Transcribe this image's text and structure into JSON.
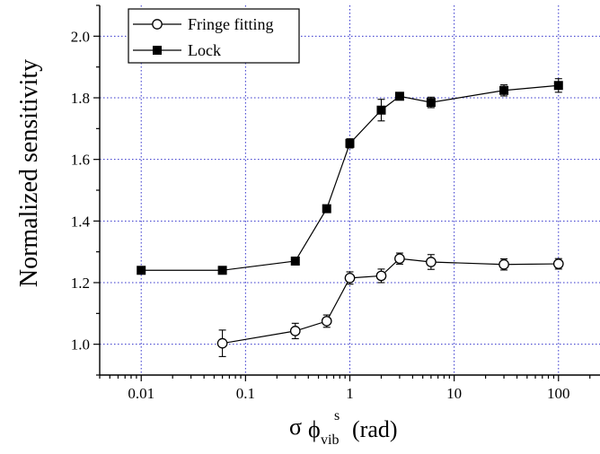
{
  "chart_data": {
    "type": "scatter",
    "x_scale": "log",
    "xlim": [
      0.004,
      250
    ],
    "ylim": [
      0.9,
      2.1
    ],
    "grid": true,
    "legend_position": "top-left",
    "xlabel": {
      "symbol": "σ",
      "var": "ϕ",
      "superscript": "s",
      "subscript": "vib",
      "unit": "(rad)"
    },
    "ylabel": "Normalized sensitivity",
    "x_ticks": [
      {
        "value": 0.01,
        "label": "0.01"
      },
      {
        "value": 0.1,
        "label": "0.1"
      },
      {
        "value": 1,
        "label": "1"
      },
      {
        "value": 10,
        "label": "10"
      },
      {
        "value": 100,
        "label": "100"
      }
    ],
    "y_ticks": [
      {
        "value": 1.0,
        "label": "1.0"
      },
      {
        "value": 1.2,
        "label": "1.2"
      },
      {
        "value": 1.4,
        "label": "1.4"
      },
      {
        "value": 1.6,
        "label": "1.6"
      },
      {
        "value": 1.8,
        "label": "1.8"
      },
      {
        "value": 2.0,
        "label": "2.0"
      }
    ],
    "series": [
      {
        "name": "Fringe fitting",
        "marker": "open-circle",
        "color": "#000000",
        "x": [
          0.06,
          0.3,
          0.6,
          1,
          2,
          3,
          6,
          30,
          100
        ],
        "y": [
          1.003,
          1.043,
          1.075,
          1.215,
          1.222,
          1.278,
          1.267,
          1.259,
          1.261
        ],
        "err": [
          0.043,
          0.025,
          0.02,
          0.02,
          0.022,
          0.018,
          0.024,
          0.018,
          0.017
        ]
      },
      {
        "name": "Lock",
        "marker": "filled-square",
        "color": "#000000",
        "x": [
          0.01,
          0.06,
          0.3,
          0.6,
          1,
          2,
          3,
          6,
          30,
          100
        ],
        "y": [
          1.24,
          1.24,
          1.27,
          1.44,
          1.652,
          1.76,
          1.805,
          1.785,
          1.824,
          1.84
        ],
        "err": [
          0,
          0,
          0,
          0,
          0.015,
          0.035,
          0,
          0.017,
          0.018,
          0.022
        ]
      }
    ]
  }
}
